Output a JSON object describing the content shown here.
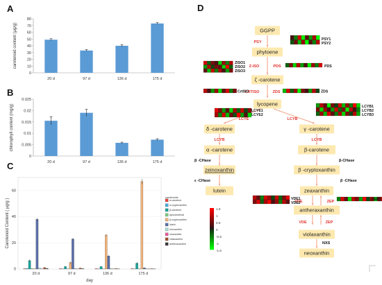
{
  "panels": {
    "A": "A",
    "B": "B",
    "C": "C",
    "D": "D"
  },
  "chart_data": [
    {
      "type": "bar",
      "panel": "A",
      "categories": [
        "20 d",
        "97 d",
        "136 d",
        "175 d"
      ],
      "values": [
        49,
        33,
        40,
        73
      ],
      "errors": [
        1.5,
        1.2,
        1.5,
        1.2
      ],
      "ylabel": "carotenoid content (μg/g)",
      "ylim": [
        0,
        80
      ],
      "yticks": [
        0,
        10,
        20,
        30,
        40,
        50,
        60,
        70,
        80
      ],
      "color": "#5b9bd5"
    },
    {
      "type": "bar",
      "panel": "B",
      "categories": [
        "20 d",
        "97 d",
        "136 d",
        "175 d"
      ],
      "values": [
        0.0155,
        0.019,
        0.0058,
        0.0072
      ],
      "errors": [
        0.0018,
        0.0015,
        0.0003,
        0.0004
      ],
      "ylabel": "chlorophyll content (mg/g)",
      "ylim": [
        0,
        0.025
      ],
      "yticks": [
        "0",
        "0.005",
        "0.01",
        "0.015",
        "0.02",
        "0.025"
      ],
      "color": "#5b9bd5"
    },
    {
      "type": "bar",
      "panel": "C",
      "categories": [
        "20 d",
        "97 d",
        "136 d",
        "175 d"
      ],
      "xlabel": "day",
      "ylabel": "Carotenoid Content ( μg/g )",
      "ylim": [
        0,
        70
      ],
      "yticks": [
        0,
        20,
        40,
        60
      ],
      "legend_title": "carotenoids",
      "series": [
        {
          "name": "α-carotene",
          "color": "#e8463b",
          "values": [
            0.3,
            0.3,
            0.3,
            0.3
          ]
        },
        {
          "name": "α-cryptoxanthin",
          "color": "#4ea8de",
          "values": [
            0.5,
            0.2,
            0.2,
            0.2
          ]
        },
        {
          "name": "β-carotene",
          "color": "#1aa39a",
          "values": [
            6.5,
            2.0,
            2.0,
            4.5
          ]
        },
        {
          "name": "apocarotenal",
          "color": "#7fc97f",
          "values": [
            0.4,
            0.2,
            0.2,
            0.2
          ]
        },
        {
          "name": "β-cryptoxanthin",
          "color": "#f0b27a",
          "values": [
            0.3,
            5.0,
            26.0,
            67.0
          ]
        },
        {
          "name": "lutein",
          "color": "#5b6fa8",
          "values": [
            38.0,
            23.0,
            10.0,
            1.0
          ]
        },
        {
          "name": "neoxanthin",
          "color": "#a6dcd6",
          "values": [
            0.8,
            0.5,
            0.4,
            0.3
          ]
        },
        {
          "name": "zeaxanthin",
          "color": "#e85a9a",
          "values": [
            0.2,
            0.2,
            0.2,
            0.2
          ]
        },
        {
          "name": "violaxanthin",
          "color": "#a0522d",
          "values": [
            1.2,
            0.8,
            0.4,
            0.3
          ]
        },
        {
          "name": "antheraxanthin",
          "color": "#3c3c3c",
          "values": [
            0.5,
            0.3,
            0.2,
            0.2
          ]
        }
      ]
    }
  ],
  "pathway": {
    "nodes": {
      "ggpp": "GGPP",
      "phytoene": "phytoene",
      "zeta_carotene": "ζ -carotene",
      "lycopene": "lycopene",
      "delta_carotene": "δ -carotene",
      "gamma_carotene": "γ -carotene",
      "alpha_carotene": "α -carotene",
      "beta_carotene": "β-carotene",
      "zeinoxanthin": "zeinoxanthin",
      "beta_cryptoxanthin": "β -cryptoxanthin",
      "lutein": "lutein",
      "zeaxanthin": "zeaxanthin",
      "antheraxanthin": "antheraxanthin",
      "violaxanthin": "violaxanthin",
      "neoxanthin": "neoxanthin"
    },
    "enzymes": {
      "psy": "PSY",
      "ziso": "Z-ISO",
      "pds": "PDS",
      "crtiso": "CRTISO",
      "zds": "ZDS",
      "lcye": "LCYE",
      "lcyb_main": "LCYB",
      "lcyb_left": "LCYB",
      "lcyb_right": "LCYB",
      "bchase_left": "β -CHase",
      "echase": "ε -CHase",
      "bchase_right": "β-CHase",
      "bchase_right2": "β -CHase",
      "vde1": "VDE",
      "vde2": "VDE",
      "zep1": "ZEP",
      "zep2": "ZEP",
      "nxs": "NXS"
    },
    "gene_labels": {
      "psy": [
        "PSY1",
        "PSY2"
      ],
      "ziso": [
        "ZISO1",
        "ZISO2",
        "ZISO3"
      ],
      "pds": [
        "PDS"
      ],
      "crtiso": [
        "CrtISO"
      ],
      "zds": [
        "ZDS"
      ],
      "lcye": [
        "LCYE1",
        "LCYE2"
      ],
      "lcyb": [
        "LCYB1",
        "LCYB2",
        "LCYB3"
      ],
      "vde": [
        "VDE1",
        "VDE2"
      ],
      "zep": [
        "ZEP"
      ]
    },
    "heatmaps": {
      "psy": [
        [
          0.2,
          -0.6,
          1.2,
          -1.4,
          0.4,
          -0.8,
          0.9,
          -1.5
        ],
        [
          -0.3,
          0.5,
          -1.0,
          0.8,
          -1.5,
          0.3,
          -0.6,
          1.0
        ]
      ],
      "ziso": [
        [
          1.2,
          -0.4,
          0.6,
          0.2,
          -1.2,
          0.8,
          -0.6,
          1.0
        ],
        [
          -0.8,
          1.0,
          -0.2,
          0.6,
          0.4,
          -1.2,
          1.4,
          -0.4
        ],
        [
          0.4,
          -1.0,
          1.1,
          -0.6,
          0.9,
          0.2,
          -0.8,
          0.6
        ]
      ],
      "pds": [
        [
          -0.4,
          0.6,
          -1.2,
          1.0,
          -0.8,
          0.3,
          -1.4,
          0.8,
          -0.6,
          1.2
        ]
      ],
      "crtiso": [
        [
          1.0,
          0.2,
          -0.8,
          0.8,
          -1.2,
          0.4,
          1.2,
          -0.6,
          0.6
        ]
      ],
      "zds": [
        [
          -1.0,
          1.2,
          -0.4,
          0.8,
          -1.4,
          0.6,
          0.2,
          -0.8,
          1.0,
          -0.2
        ]
      ],
      "lcye": [
        [
          1.3,
          0.6,
          -0.8,
          0.4,
          -1.2,
          0.9,
          -0.4,
          1.1,
          -0.2,
          0.7
        ],
        [
          0.9,
          -0.6,
          1.2,
          -1.0,
          0.5,
          -0.3,
          1.4,
          -0.8,
          0.3,
          -1.2
        ]
      ],
      "lcyb": [
        [
          -0.8,
          1.0,
          0.4,
          -1.4,
          0.6,
          -0.2,
          1.2,
          -1.0,
          0.8,
          -0.6,
          1.4,
          -1.2
        ],
        [
          0.6,
          -1.2,
          0.8,
          0.2,
          -0.8,
          1.2,
          -0.4,
          0.6,
          -1.4,
          1.0,
          0.2,
          -0.6
        ],
        [
          -0.4,
          0.8,
          -1.0,
          1.2,
          0.4,
          -0.6,
          0.9,
          -1.2,
          0.6,
          -0.2,
          1.0,
          -0.9
        ]
      ],
      "vde": [
        [
          1.0,
          0.4,
          -0.6,
          1.2,
          0.8,
          -0.2,
          1.1,
          -0.4,
          0.6,
          1.3
        ],
        [
          0.6,
          1.2,
          -0.4,
          0.9,
          1.4,
          0.2,
          0.8,
          -0.6,
          1.0,
          0.4
        ]
      ],
      "zep": [
        [
          -0.6,
          1.2,
          0.4,
          -1.2,
          1.0,
          0.6,
          -0.8,
          1.4,
          -0.2,
          0.8,
          -1.0,
          0.4,
          1.2,
          -0.6
        ]
      ]
    },
    "scale": {
      "ticks": [
        "1.5",
        "1",
        "0.5",
        "0",
        "-0.5",
        "-1",
        "-1.5"
      ]
    }
  }
}
